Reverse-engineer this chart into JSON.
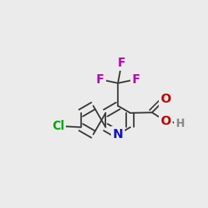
{
  "background_color": "#ebebeb",
  "bond_color": "#3a3a3a",
  "bond_width": 1.6,
  "atom_colors": {
    "N": "#1010dd",
    "O": "#cc0000",
    "F": "#bb00bb",
    "Cl": "#00aa00",
    "H": "#888888",
    "C": "#3a3a3a"
  },
  "font_size": 12
}
